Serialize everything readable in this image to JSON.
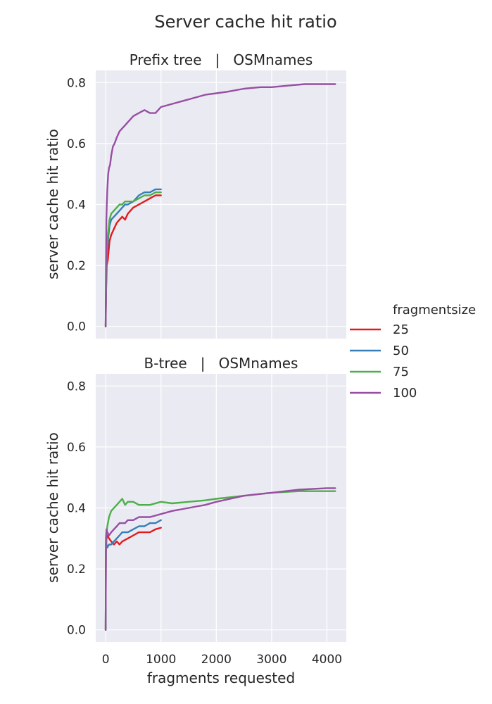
{
  "figure": {
    "title": "Server cache hit ratio"
  },
  "legend": {
    "title": "fragmentsize",
    "placement": "right",
    "entries": [
      {
        "label": "25",
        "color": "#e41a1c"
      },
      {
        "label": "50",
        "color": "#377eb8"
      },
      {
        "label": "75",
        "color": "#4daf4a"
      },
      {
        "label": "100",
        "color": "#984ea3"
      }
    ]
  },
  "chart_data": [
    {
      "type": "line",
      "title": "Prefix tree   |   OSMnames",
      "xlabel": "",
      "ylabel": "server cache hit ratio",
      "xlim": [
        -180,
        4350
      ],
      "ylim": [
        -0.04,
        0.84
      ],
      "xticks": [
        0,
        1000,
        2000,
        3000,
        4000
      ],
      "yticks": [
        0.0,
        0.2,
        0.4,
        0.6,
        0.8
      ],
      "ytick_labels": [
        "0.0",
        "0.2",
        "0.4",
        "0.6",
        "0.8"
      ],
      "grid": true,
      "series": [
        {
          "name": "25",
          "color": "#e41a1c",
          "x": [
            0,
            8,
            20,
            40,
            70,
            100,
            150,
            200,
            250,
            300,
            350,
            400,
            500,
            600,
            700,
            800,
            900,
            1000
          ],
          "y": [
            0.0,
            0.12,
            0.2,
            0.22,
            0.28,
            0.3,
            0.32,
            0.34,
            0.35,
            0.36,
            0.35,
            0.37,
            0.39,
            0.4,
            0.41,
            0.42,
            0.43,
            0.43
          ]
        },
        {
          "name": "50",
          "color": "#377eb8",
          "x": [
            0,
            8,
            20,
            40,
            70,
            100,
            150,
            200,
            250,
            300,
            350,
            400,
            500,
            600,
            700,
            800,
            900,
            1000
          ],
          "y": [
            0.0,
            0.14,
            0.24,
            0.28,
            0.33,
            0.35,
            0.36,
            0.37,
            0.38,
            0.39,
            0.4,
            0.4,
            0.41,
            0.43,
            0.44,
            0.44,
            0.45,
            0.45
          ]
        },
        {
          "name": "75",
          "color": "#4daf4a",
          "x": [
            0,
            8,
            20,
            40,
            70,
            100,
            150,
            200,
            250,
            300,
            350,
            400,
            500,
            600,
            700,
            800,
            900,
            1000
          ],
          "y": [
            0.0,
            0.16,
            0.26,
            0.3,
            0.35,
            0.37,
            0.38,
            0.39,
            0.4,
            0.4,
            0.41,
            0.41,
            0.41,
            0.42,
            0.43,
            0.43,
            0.44,
            0.44
          ]
        },
        {
          "name": "100",
          "color": "#984ea3",
          "x": [
            0,
            6,
            12,
            20,
            30,
            45,
            60,
            80,
            100,
            130,
            160,
            200,
            250,
            300,
            350,
            400,
            500,
            600,
            700,
            800,
            900,
            1000,
            1200,
            1400,
            1600,
            1800,
            2000,
            2200,
            2500,
            2800,
            3000,
            3300,
            3600,
            3900,
            4150
          ],
          "y": [
            0.0,
            0.2,
            0.35,
            0.4,
            0.45,
            0.5,
            0.52,
            0.53,
            0.56,
            0.59,
            0.6,
            0.62,
            0.64,
            0.65,
            0.66,
            0.67,
            0.69,
            0.7,
            0.71,
            0.7,
            0.7,
            0.72,
            0.73,
            0.74,
            0.75,
            0.76,
            0.765,
            0.77,
            0.78,
            0.785,
            0.785,
            0.79,
            0.795,
            0.795,
            0.795
          ]
        }
      ]
    },
    {
      "type": "line",
      "title": "B-tree   |   OSMnames",
      "xlabel": "fragments requested",
      "ylabel": "server cache hit ratio",
      "xlim": [
        -180,
        4350
      ],
      "ylim": [
        -0.04,
        0.84
      ],
      "xticks": [
        0,
        1000,
        2000,
        3000,
        4000
      ],
      "xtick_labels": [
        "0",
        "1000",
        "2000",
        "3000",
        "4000"
      ],
      "yticks": [
        0.0,
        0.2,
        0.4,
        0.6,
        0.8
      ],
      "ytick_labels": [
        "0.0",
        "0.2",
        "0.4",
        "0.6",
        "0.8"
      ],
      "grid": true,
      "series": [
        {
          "name": "25",
          "color": "#e41a1c",
          "x": [
            0,
            5,
            15,
            30,
            60,
            100,
            150,
            200,
            250,
            300,
            400,
            500,
            600,
            700,
            800,
            900,
            1000
          ],
          "y": [
            0.0,
            0.25,
            0.3,
            0.31,
            0.3,
            0.29,
            0.28,
            0.29,
            0.28,
            0.29,
            0.3,
            0.31,
            0.32,
            0.32,
            0.32,
            0.33,
            0.335
          ]
        },
        {
          "name": "50",
          "color": "#377eb8",
          "x": [
            0,
            5,
            15,
            30,
            60,
            100,
            150,
            200,
            250,
            300,
            400,
            500,
            600,
            700,
            800,
            900,
            1000
          ],
          "y": [
            0.0,
            0.26,
            0.28,
            0.27,
            0.28,
            0.28,
            0.29,
            0.3,
            0.31,
            0.32,
            0.32,
            0.33,
            0.34,
            0.34,
            0.35,
            0.35,
            0.36
          ]
        },
        {
          "name": "75",
          "color": "#4daf4a",
          "x": [
            0,
            5,
            15,
            30,
            60,
            100,
            150,
            200,
            250,
            300,
            350,
            400,
            500,
            600,
            700,
            800,
            1000,
            1200,
            1500,
            1800,
            2000,
            2500,
            3000,
            3500,
            4000,
            4150
          ],
          "y": [
            0.0,
            0.28,
            0.32,
            0.34,
            0.37,
            0.39,
            0.4,
            0.41,
            0.42,
            0.43,
            0.41,
            0.42,
            0.42,
            0.41,
            0.41,
            0.41,
            0.42,
            0.415,
            0.42,
            0.425,
            0.43,
            0.44,
            0.45,
            0.455,
            0.455,
            0.455
          ]
        },
        {
          "name": "100",
          "color": "#984ea3",
          "x": [
            0,
            5,
            15,
            30,
            60,
            100,
            150,
            200,
            250,
            300,
            350,
            400,
            500,
            600,
            700,
            800,
            1000,
            1200,
            1500,
            1800,
            2000,
            2500,
            3000,
            3500,
            4000,
            4150
          ],
          "y": [
            0.0,
            0.3,
            0.33,
            0.32,
            0.31,
            0.32,
            0.33,
            0.34,
            0.35,
            0.35,
            0.35,
            0.36,
            0.36,
            0.37,
            0.37,
            0.37,
            0.38,
            0.39,
            0.4,
            0.41,
            0.42,
            0.44,
            0.45,
            0.46,
            0.465,
            0.465
          ]
        }
      ]
    }
  ]
}
